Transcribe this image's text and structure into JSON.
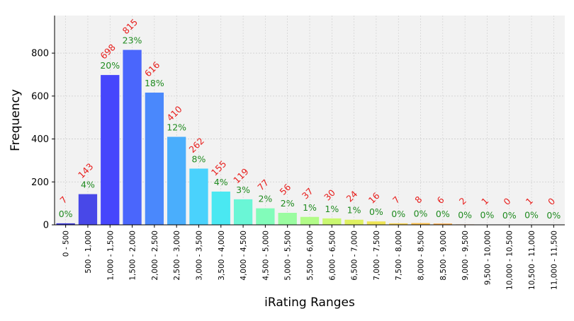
{
  "chart_data": {
    "type": "bar",
    "xlabel": "iRating Ranges",
    "ylabel": "Frequency",
    "ylim": [
      0,
      975
    ],
    "yticks": [
      0,
      200,
      400,
      600,
      800
    ],
    "grid": true,
    "categories": [
      "0 - 500",
      "500 - 1,000",
      "1,000 - 1,500",
      "1,500 - 2,000",
      "2,000 - 2,500",
      "2,500 - 3,000",
      "3,000 - 3,500",
      "3,500 - 4,000",
      "4,000 - 4,500",
      "4,500 - 5,000",
      "5,000 - 5,500",
      "5,500 - 6,000",
      "6,000 - 6,500",
      "6,500 - 7,000",
      "7,000 - 7,500",
      "7,500 - 8,000",
      "8,000 - 8,500",
      "8,500 - 9,000",
      "9,000 - 9,500",
      "9,500 - 10,000",
      "10,000 - 10,500",
      "10,500 - 11,000",
      "11,000 - 11,500"
    ],
    "values": [
      7,
      143,
      698,
      815,
      616,
      410,
      262,
      155,
      119,
      77,
      56,
      37,
      30,
      24,
      16,
      7,
      8,
      6,
      2,
      1,
      0,
      1,
      0
    ],
    "count_labels": [
      "7",
      "143",
      "698",
      "815",
      "616",
      "410",
      "262",
      "155",
      "119",
      "77",
      "56",
      "37",
      "30",
      "24",
      "16",
      "7",
      "8",
      "6",
      "2",
      "1",
      "0",
      "1",
      "0"
    ],
    "percent_labels": [
      "0%",
      "4%",
      "20%",
      "23%",
      "18%",
      "12%",
      "8%",
      "4%",
      "3%",
      "2%",
      "2%",
      "1%",
      "1%",
      "1%",
      "0%",
      "0%",
      "0%",
      "0%",
      "0%",
      "0%",
      "0%",
      "0%",
      "0%"
    ],
    "bar_colors": [
      "#3a36d6",
      "#4848e8",
      "#4646fc",
      "#4a66fc",
      "#4a88fc",
      "#4aaefc",
      "#4ad2fc",
      "#4ae8f2",
      "#6af6d6",
      "#82fcba",
      "#9afca0",
      "#b2fc88",
      "#caf870",
      "#def060",
      "#eee456",
      "#f8d450",
      "#fcc048",
      "#fcaa44",
      "#fc9240",
      "#fc7838",
      "#fc5e30",
      "#f44024",
      "#e22418"
    ],
    "colors": {
      "count_label": "#e8201e",
      "percent_label": "#1f8a1f",
      "plot_background": "#f2f2f2",
      "grid": "#cccccc"
    }
  }
}
